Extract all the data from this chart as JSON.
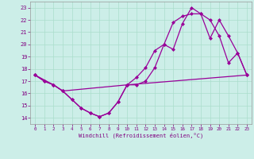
{
  "xlabel": "Windchill (Refroidissement éolien,°C)",
  "xlim": [
    -0.5,
    23.5
  ],
  "ylim": [
    13.5,
    23.5
  ],
  "xticks": [
    0,
    1,
    2,
    3,
    4,
    5,
    6,
    7,
    8,
    9,
    10,
    11,
    12,
    13,
    14,
    15,
    16,
    17,
    18,
    19,
    20,
    21,
    22,
    23
  ],
  "yticks": [
    14,
    15,
    16,
    17,
    18,
    19,
    20,
    21,
    22,
    23
  ],
  "bg_color": "#cceee8",
  "line_color": "#990099",
  "grid_color": "#aaddcc",
  "line1_x": [
    0,
    1,
    2,
    3,
    4,
    5,
    6,
    7,
    8,
    9,
    10,
    11,
    12,
    13,
    14,
    15,
    16,
    17,
    18,
    19,
    20,
    21,
    22,
    23
  ],
  "line1_y": [
    17.5,
    17.0,
    16.7,
    16.2,
    15.5,
    14.8,
    14.4,
    14.1,
    14.4,
    15.3,
    16.7,
    16.7,
    17.0,
    18.1,
    20.0,
    19.6,
    21.7,
    23.0,
    22.5,
    22.0,
    20.7,
    18.5,
    19.3,
    17.5
  ],
  "line2_x": [
    0,
    2,
    3,
    10,
    11,
    12,
    13,
    14,
    15,
    16,
    17,
    18,
    19,
    20,
    21,
    22,
    23
  ],
  "line2_y": [
    17.5,
    16.7,
    16.2,
    16.7,
    17.3,
    18.1,
    19.5,
    20.0,
    21.8,
    22.3,
    22.5,
    22.5,
    20.5,
    22.0,
    20.7,
    19.3,
    17.5
  ],
  "line3_x": [
    0,
    1,
    2,
    3,
    4,
    5,
    6,
    7,
    8,
    9,
    10,
    23
  ],
  "line3_y": [
    17.5,
    17.0,
    16.7,
    16.2,
    15.5,
    14.8,
    14.4,
    14.1,
    14.4,
    15.3,
    16.7,
    17.5
  ],
  "markersize": 2.5,
  "linewidth": 0.9
}
